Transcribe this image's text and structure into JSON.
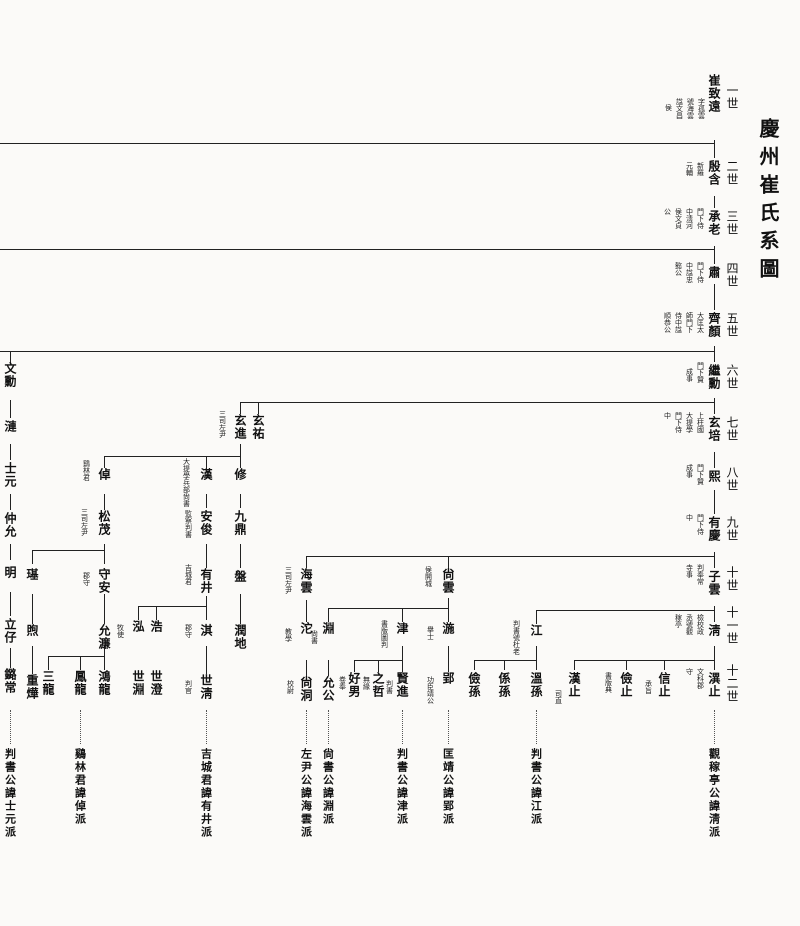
{
  "title": "慶州崔氏系圖",
  "generations": [
    "一世",
    "二世",
    "三世",
    "四世",
    "五世",
    "六世",
    "七世",
    "八世",
    "九世",
    "十世",
    "十一世",
    "十二世"
  ],
  "main_line": [
    {
      "name": "崔致遠",
      "notes": [
        "字孤雲",
        "號海雲",
        "諡文昌",
        "侯"
      ]
    },
    {
      "name": "殷含",
      "notes": [
        "新羅",
        "元輔"
      ]
    },
    {
      "name": "承老",
      "notes": [
        "門下侍",
        "中淸河",
        "侯文貞",
        "公"
      ]
    },
    {
      "name": "肅",
      "notes": [
        "門下侍",
        "中諡忠",
        "懿公"
      ]
    },
    {
      "name": "齊顏",
      "notes": [
        "大匡太",
        "師門下",
        "侍中諡",
        "順恭公"
      ]
    },
    {
      "name": "繼勳",
      "notes": [
        "門下贊",
        "成事"
      ]
    },
    {
      "name": "玄培",
      "notes": [
        "上柱國",
        "大提學",
        "門下侍",
        "中"
      ]
    },
    {
      "name": "熙",
      "notes": [
        "門下贊",
        "成事"
      ]
    },
    {
      "name": "有慶",
      "notes": [
        "門下侍",
        "中"
      ]
    },
    {
      "name": "子雲",
      "notes": [
        "判奉常",
        "寺事"
      ]
    },
    {
      "name": "淸",
      "notes": [
        "檢校政",
        "丞號觀",
        "稼亭"
      ]
    },
    {
      "name": "潩止",
      "notes": [
        "文科郡",
        "守"
      ]
    }
  ],
  "people": {
    "xuanyou": "玄祐",
    "xuanjin": "玄進",
    "xuanjin_note": "三司左尹",
    "xiu": "修",
    "jiuding": "九鼎",
    "pan": "盤",
    "runzhi": "潤地",
    "zhuo": "倬",
    "zhuo_note": "鷄林君",
    "songmao": "松茂",
    "songmao_note": "三司左尹",
    "shouan": "守安",
    "shouan_note": "郡守",
    "yunqian": "允濂",
    "han": "漢",
    "han_note": "大提學兵部尙書",
    "anjun": "安俊",
    "anjun_note": "監察判書",
    "youjing": "有井",
    "youjing_note": "吉城君",
    "qi": "淇",
    "qi_note": "郡守",
    "shiqing": "世淸",
    "shiqing_note": "判官",
    "hong": "泓",
    "hong_note": "牧使",
    "hao": "浩",
    "shiyuan": "世淵",
    "shideng": "世澄",
    "wenxun": "文勳",
    "jian": "漣",
    "shiyuan2": "士元",
    "zhongyun": "仲允",
    "ming": "明",
    "lisong": "立仔",
    "lianchang": "鏴常",
    "ji": "璂",
    "xu": "煦",
    "zhonghua": "重燁",
    "sanlong": "三龍",
    "fenglong": "鳳龍",
    "honglong": "鴻龍",
    "haiyun": "海雲",
    "haiyun_note": "三司左尹",
    "shangyun": "尙雲",
    "shangyun_note": "侯開城",
    "yuan": "淵",
    "yuan_note": "尙書",
    "he": "沱",
    "he_note": "教學",
    "shangdong": "尙洞",
    "shangdong_note": "校尉",
    "yungong": "允公",
    "zhen": "津",
    "zhen_note": "書版圖判",
    "haoqi": "好男",
    "haoqi_note": "卷奉",
    "zhizhe": "之哲",
    "zhizhe_note": "無緣",
    "xianjin": "賢進",
    "xianjin_note": "判書",
    "you": "湤",
    "you_note": "擧士",
    "ying": "郢",
    "ying_note": "功臣靖公",
    "jiang": "江",
    "jiang_note": "判書號杜老",
    "jiansun": "儉孫",
    "xisun": "係孫",
    "wensun": "溫孫",
    "hanzhi": "漢止",
    "hanzhi_note": "司直",
    "jianzhi": "儉止",
    "jianzhi_note": "書版典",
    "xinzhi": "信止",
    "xinzhi_note": "承旨"
  },
  "branches": [
    "判書公諱士元派",
    "鷄林君諱倬派",
    "吉城君諱有井派",
    "左尹公諱海雲派",
    "尙書公諱淵派",
    "判書公諱津派",
    "匡靖公諱郢派",
    "判書公諱江派",
    "觀稼亭公諱淸派"
  ]
}
